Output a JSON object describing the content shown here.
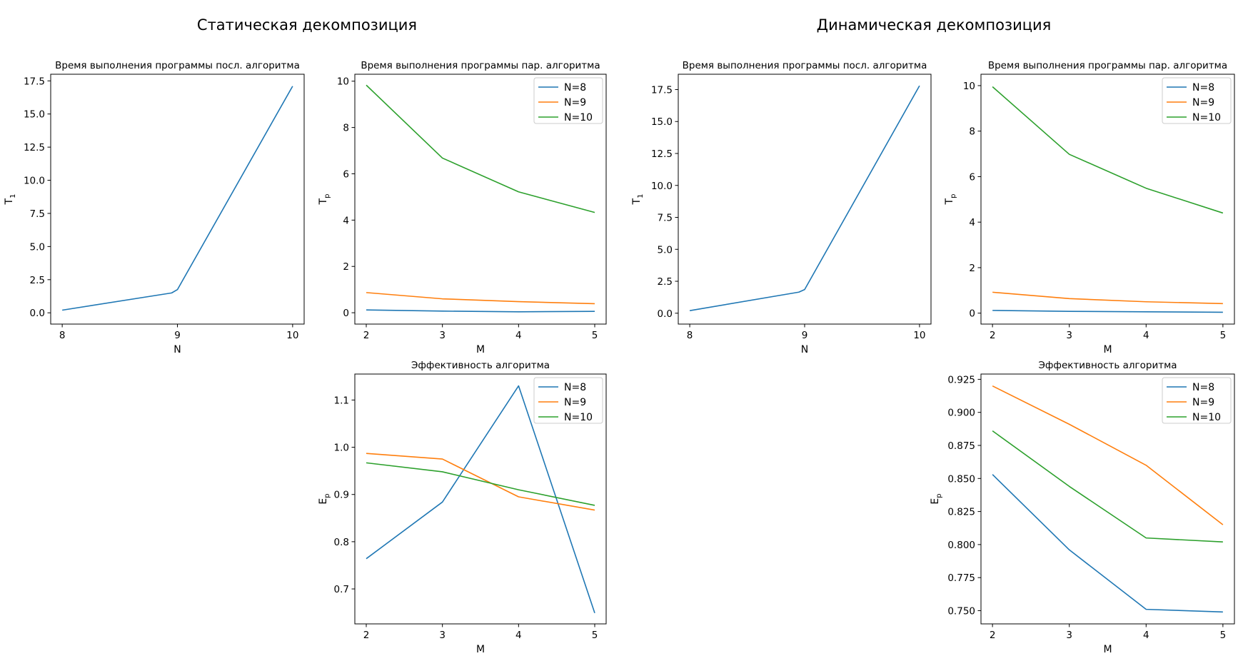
{
  "figure": {
    "suptitles": [
      "Статическая декомпозиция",
      "Динамическая декомпозиция"
    ]
  },
  "colors": {
    "blue": "#1f77b4",
    "orange": "#ff7f0e",
    "green": "#2ca02c"
  },
  "chart_data": [
    {
      "id": "static-seq",
      "type": "line",
      "title": "Время выполнения программы посл. алгоритма",
      "xlabel": "N",
      "ylabel": "T",
      "ylabel_sub": "1",
      "xlim": [
        7.9,
        10.1
      ],
      "ylim": [
        -0.85,
        18.0
      ],
      "xticks": [
        8,
        9,
        10
      ],
      "yticks": [
        0.0,
        2.5,
        5.0,
        7.5,
        10.0,
        12.5,
        15.0,
        17.5
      ],
      "ytick_labels": [
        "0.0",
        "2.5",
        "5.0",
        "7.5",
        "10.0",
        "12.5",
        "15.0",
        "17.5"
      ],
      "legend": false,
      "series": [
        {
          "color": "#1f77b4",
          "x": [
            8,
            8.95,
            9,
            10
          ],
          "y": [
            0.2,
            1.5,
            1.75,
            17.1
          ]
        }
      ]
    },
    {
      "id": "static-par",
      "type": "line",
      "title": "Время выполнения программы пар. алгоритма",
      "xlabel": "M",
      "ylabel": "T",
      "ylabel_sub": "p",
      "xlim": [
        1.85,
        5.15
      ],
      "ylim": [
        -0.49,
        10.3
      ],
      "xticks": [
        2,
        3,
        4,
        5
      ],
      "yticks": [
        0,
        2,
        4,
        6,
        8,
        10
      ],
      "ytick_labels": [
        "0",
        "2",
        "4",
        "6",
        "8",
        "10"
      ],
      "legend": true,
      "series": [
        {
          "name": "N=8",
          "color": "#1f77b4",
          "x": [
            2,
            3,
            4,
            5
          ],
          "y": [
            0.12,
            0.07,
            0.04,
            0.06
          ]
        },
        {
          "name": "N=9",
          "color": "#ff7f0e",
          "x": [
            2,
            3,
            4,
            5
          ],
          "y": [
            0.87,
            0.6,
            0.48,
            0.39
          ]
        },
        {
          "name": "N=10",
          "color": "#2ca02c",
          "x": [
            2,
            3,
            4,
            5
          ],
          "y": [
            9.83,
            6.68,
            5.22,
            4.33
          ]
        }
      ]
    },
    {
      "id": "static-eff",
      "type": "line",
      "title": "Эффективность алгоритма",
      "xlabel": "M",
      "ylabel": "E",
      "ylabel_sub": "p",
      "xlim": [
        1.85,
        5.15
      ],
      "ylim": [
        0.626,
        1.155
      ],
      "xticks": [
        2,
        3,
        4,
        5
      ],
      "yticks": [
        0.7,
        0.8,
        0.9,
        1.0,
        1.1
      ],
      "ytick_labels": [
        "0.7",
        "0.8",
        "0.9",
        "1.0",
        "1.1"
      ],
      "legend": true,
      "series": [
        {
          "name": "N=8",
          "color": "#1f77b4",
          "x": [
            2,
            3,
            4,
            5
          ],
          "y": [
            0.764,
            0.884,
            1.13,
            0.649
          ]
        },
        {
          "name": "N=9",
          "color": "#ff7f0e",
          "x": [
            2,
            3,
            4,
            5
          ],
          "y": [
            0.987,
            0.975,
            0.895,
            0.867
          ]
        },
        {
          "name": "N=10",
          "color": "#2ca02c",
          "x": [
            2,
            3,
            4,
            5
          ],
          "y": [
            0.967,
            0.948,
            0.91,
            0.877
          ]
        }
      ]
    },
    {
      "id": "dynamic-seq",
      "type": "line",
      "title": "Время выполнения программы посл. алгоритма",
      "xlabel": "N",
      "ylabel": "T",
      "ylabel_sub": "1",
      "xlim": [
        7.9,
        10.1
      ],
      "ylim": [
        -0.85,
        18.7
      ],
      "xticks": [
        8,
        9,
        10
      ],
      "yticks": [
        0.0,
        2.5,
        5.0,
        7.5,
        10.0,
        12.5,
        15.0,
        17.5
      ],
      "ytick_labels": [
        "0.0",
        "2.5",
        "5.0",
        "7.5",
        "10.0",
        "12.5",
        "15.0",
        "17.5"
      ],
      "legend": false,
      "series": [
        {
          "color": "#1f77b4",
          "x": [
            8,
            8.95,
            9,
            10
          ],
          "y": [
            0.2,
            1.65,
            1.85,
            17.8
          ]
        }
      ]
    },
    {
      "id": "dynamic-par",
      "type": "line",
      "title": "Время выполнения программы пар. алгоритма",
      "xlabel": "M",
      "ylabel": "T",
      "ylabel_sub": "p",
      "xlim": [
        1.85,
        5.15
      ],
      "ylim": [
        -0.48,
        10.5
      ],
      "xticks": [
        2,
        3,
        4,
        5
      ],
      "yticks": [
        0,
        2,
        4,
        6,
        8,
        10
      ],
      "ytick_labels": [
        "0",
        "2",
        "4",
        "6",
        "8",
        "10"
      ],
      "legend": true,
      "series": [
        {
          "name": "N=8",
          "color": "#1f77b4",
          "x": [
            2,
            3,
            4,
            5
          ],
          "y": [
            0.12,
            0.08,
            0.06,
            0.04
          ]
        },
        {
          "name": "N=9",
          "color": "#ff7f0e",
          "x": [
            2,
            3,
            4,
            5
          ],
          "y": [
            0.92,
            0.64,
            0.5,
            0.42
          ]
        },
        {
          "name": "N=10",
          "color": "#2ca02c",
          "x": [
            2,
            3,
            4,
            5
          ],
          "y": [
            9.95,
            6.98,
            5.49,
            4.4
          ]
        }
      ]
    },
    {
      "id": "dynamic-eff",
      "type": "line",
      "title": "Эффективность алгоритма",
      "xlabel": "M",
      "ylabel": "E",
      "ylabel_sub": "p",
      "xlim": [
        1.85,
        5.15
      ],
      "ylim": [
        0.74,
        0.929
      ],
      "xticks": [
        2,
        3,
        4,
        5
      ],
      "yticks": [
        0.75,
        0.775,
        0.8,
        0.825,
        0.85,
        0.875,
        0.9,
        0.925
      ],
      "ytick_labels": [
        "0.750",
        "0.775",
        "0.800",
        "0.825",
        "0.850",
        "0.875",
        "0.900",
        "0.925"
      ],
      "legend": true,
      "series": [
        {
          "name": "N=8",
          "color": "#1f77b4",
          "x": [
            2,
            3,
            4,
            5
          ],
          "y": [
            0.853,
            0.796,
            0.751,
            0.749
          ]
        },
        {
          "name": "N=9",
          "color": "#ff7f0e",
          "x": [
            2,
            3,
            4,
            5
          ],
          "y": [
            0.92,
            0.891,
            0.86,
            0.815
          ]
        },
        {
          "name": "N=10",
          "color": "#2ca02c",
          "x": [
            2,
            3,
            4,
            5
          ],
          "y": [
            0.886,
            0.844,
            0.805,
            0.802
          ]
        }
      ]
    }
  ]
}
